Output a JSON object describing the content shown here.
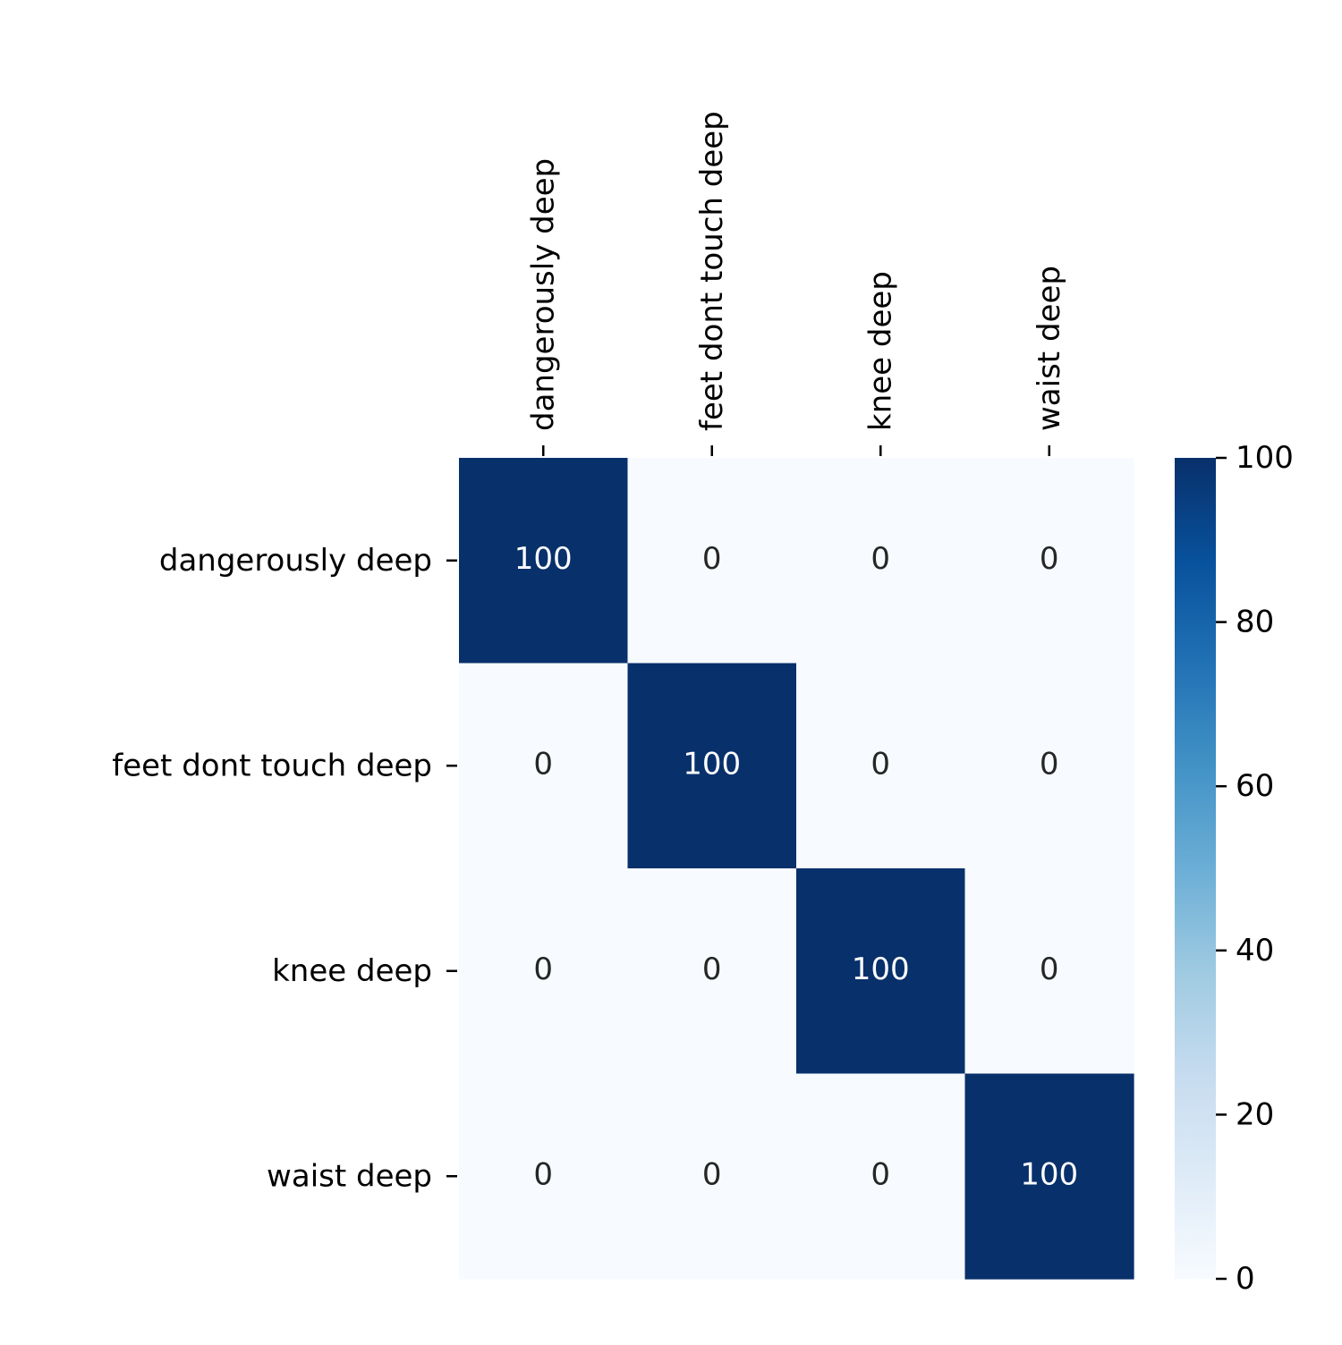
{
  "chart_data": {
    "type": "heatmap",
    "title": "",
    "xlabel": "",
    "ylabel": "",
    "x_categories": [
      "dangerously deep",
      "feet dont touch deep",
      "knee deep",
      "waist deep"
    ],
    "y_categories": [
      "dangerously deep",
      "feet dont touch deep",
      "knee deep",
      "waist deep"
    ],
    "x_tick_position": "top",
    "x_tick_rotation": "vertical",
    "values": [
      [
        100,
        0,
        0,
        0
      ],
      [
        0,
        100,
        0,
        0
      ],
      [
        0,
        0,
        100,
        0
      ],
      [
        0,
        0,
        0,
        100
      ]
    ],
    "annotations": true,
    "colormap": "Blues",
    "color_low": "#f7fbff",
    "color_high": "#08306b",
    "annotation_color_dark_cell": "#ffffff",
    "annotation_color_light_cell": "#262626",
    "vmin": 0,
    "vmax": 100,
    "colorbar": {
      "ticks": [
        0,
        20,
        40,
        60,
        80,
        100
      ],
      "tick_labels": [
        "0",
        "20",
        "40",
        "60",
        "80",
        "100"
      ],
      "placement": "right"
    }
  }
}
